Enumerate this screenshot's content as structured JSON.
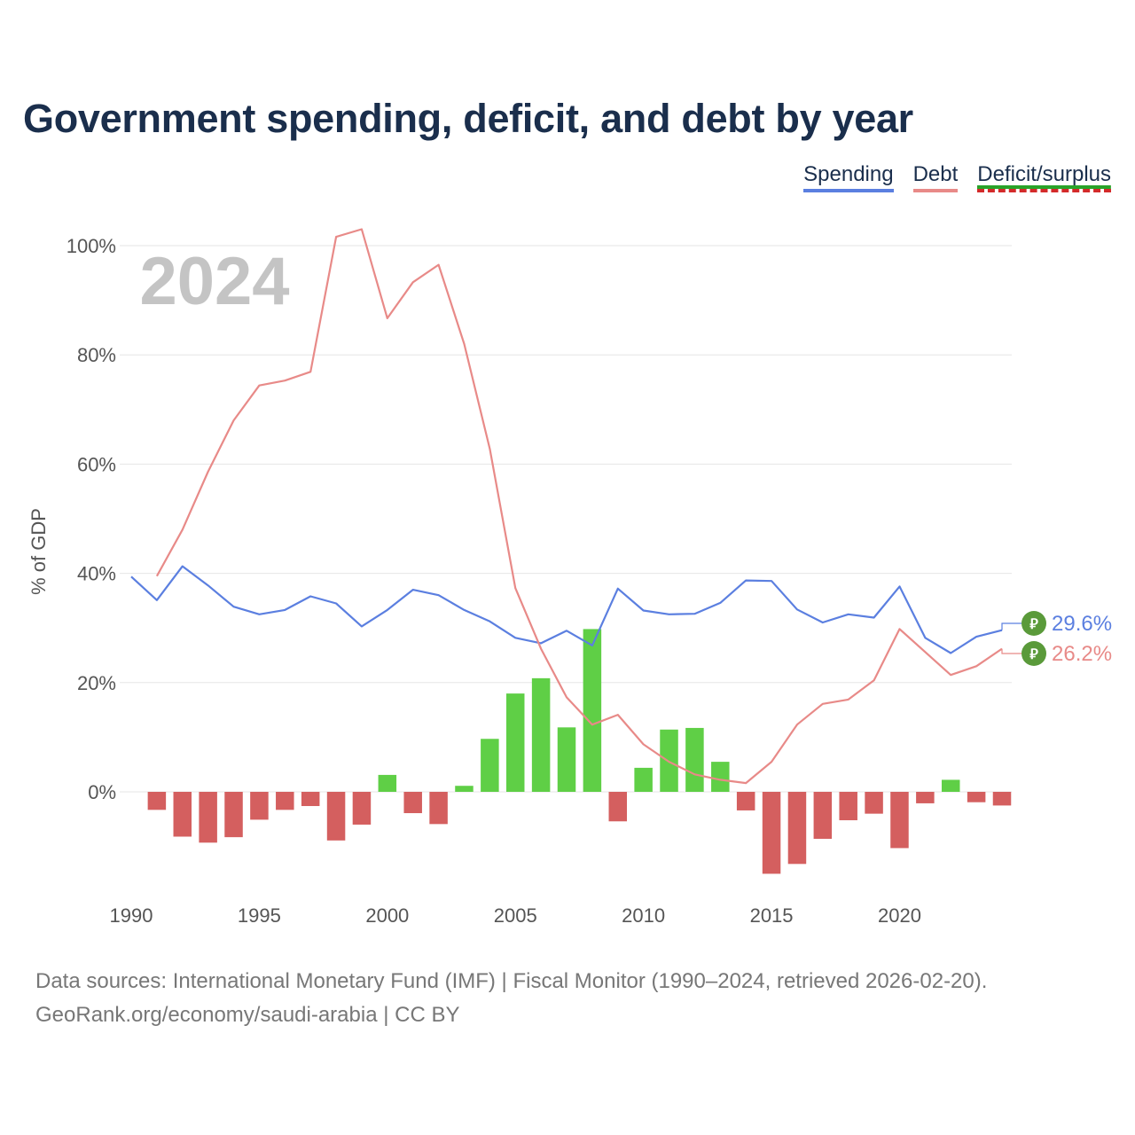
{
  "title": "Government spending, deficit, and debt by year",
  "legend": {
    "spending": "Spending",
    "debt": "Debt",
    "deficit": "Deficit/surplus"
  },
  "colors": {
    "spending": "#5b7fe0",
    "debt": "#e88a88",
    "surplus": "#5fcf46",
    "deficit": "#d45f5f",
    "year_watermark": "#c4c4c4",
    "badge": "#5a9a3a"
  },
  "footer": {
    "line1": "Data sources: International Monetary Fund (IMF) | Fiscal Monitor (1990–2024, retrieved 2026-02-20).",
    "line2": "GeoRank.org/economy/saudi-arabia | CC BY"
  },
  "chart_data": {
    "type": "line+bar",
    "ylabel": "% of GDP",
    "ylim": [
      -19,
      104
    ],
    "yticks": [
      0,
      20,
      40,
      60,
      80,
      100
    ],
    "ytick_labels": [
      "0%",
      "20%",
      "40%",
      "60%",
      "80%",
      "100%"
    ],
    "xlim": [
      1990,
      2024
    ],
    "xticks": [
      1990,
      1995,
      2000,
      2005,
      2010,
      2015,
      2020
    ],
    "current_year": "2024",
    "end_labels": {
      "spending": "29.6%",
      "debt": "26.2%"
    },
    "badge_icon": "saudi-riyal-symbol",
    "badge_glyph": "⃁",
    "series": [
      {
        "name": "Spending",
        "type": "line",
        "start_year": 1990,
        "values": [
          39.4,
          35.1,
          41.3,
          37.8,
          33.9,
          32.5,
          33.3,
          35.8,
          34.5,
          30.3,
          33.3,
          37.0,
          36.0,
          33.3,
          31.2,
          28.2,
          27.2,
          29.5,
          26.8,
          37.2,
          33.2,
          32.5,
          32.6,
          34.6,
          38.7,
          38.6,
          33.4,
          31.0,
          32.5,
          31.9,
          37.6,
          28.2,
          25.4,
          28.4,
          29.6
        ]
      },
      {
        "name": "Debt",
        "type": "line",
        "start_year": 1991,
        "values": [
          39.5,
          48.0,
          58.6,
          68.0,
          74.4,
          75.3,
          76.9,
          101.6,
          103.0,
          86.7,
          93.3,
          96.5,
          82.0,
          62.8,
          37.3,
          26.2,
          17.3,
          12.3,
          14.1,
          8.7,
          5.5,
          3.2,
          2.2,
          1.6,
          5.5,
          12.3,
          16.1,
          16.9,
          20.4,
          29.8,
          25.6,
          21.4,
          23.0,
          26.2
        ]
      },
      {
        "name": "Deficit/surplus",
        "type": "bar",
        "start_year": 1991,
        "values": [
          -3.3,
          -8.2,
          -9.3,
          -8.3,
          -5.1,
          -3.3,
          -2.6,
          -8.9,
          -6.0,
          3.1,
          -3.9,
          -5.9,
          1.1,
          9.7,
          18.0,
          20.8,
          11.8,
          29.8,
          -5.4,
          4.4,
          11.4,
          11.7,
          5.5,
          -3.4,
          -15.0,
          -13.2,
          -8.6,
          -5.2,
          -4.0,
          -10.3,
          -2.1,
          2.2,
          -1.9,
          -2.5
        ]
      }
    ]
  }
}
